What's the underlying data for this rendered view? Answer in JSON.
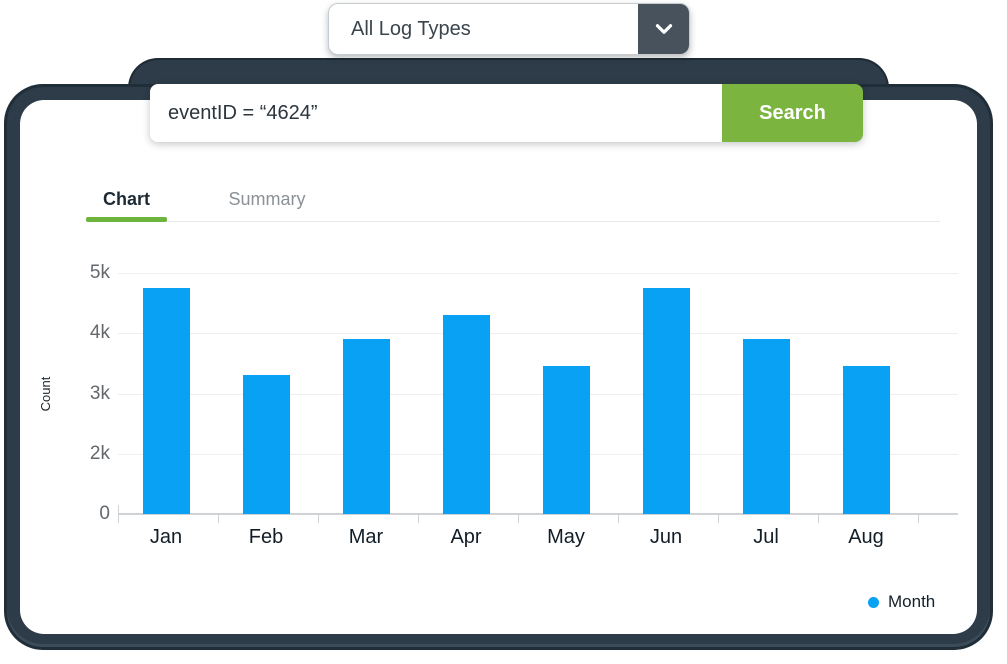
{
  "dropdown": {
    "value": "All Log Types"
  },
  "search": {
    "query": "eventID = “4624”",
    "button_label": "Search"
  },
  "tabs": {
    "chart": "Chart",
    "summary": "Summary",
    "active_tab": "Chart"
  },
  "chart_data": {
    "type": "bar",
    "categories": [
      "Jan",
      "Feb",
      "Mar",
      "Apr",
      "May",
      "Jun",
      "Jul",
      "Aug"
    ],
    "values": [
      4750,
      3300,
      3900,
      4300,
      3450,
      4750,
      3900,
      3450
    ],
    "title": "",
    "xlabel": "",
    "ylabel": "Count",
    "y_ticks": [
      "5k",
      "4k",
      "3k",
      "2k",
      "0"
    ],
    "ylim": [
      0,
      5000
    ],
    "grid": true,
    "bar_color": "#09a1f3",
    "legend": {
      "label": "Month",
      "dot_color": "#09a1f3",
      "position": "bottom-right"
    }
  },
  "colors": {
    "frame_dark": "#2d3c48",
    "frame_edge": "#202e39",
    "accent_green": "#7bb43f",
    "tab_underline_green": "#6cb43c",
    "bar_blue": "#09a1f3",
    "chevron_box": "#47525c",
    "gridline": "#efefef",
    "axis_line": "#cfd3d6"
  }
}
